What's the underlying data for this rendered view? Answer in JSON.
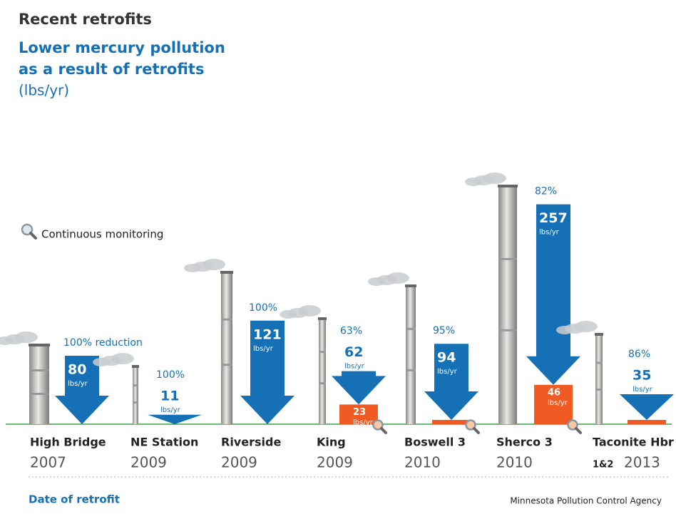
{
  "chart_data": {
    "type": "retrofit-arrows",
    "title": "Recent retrofits",
    "subtitle": [
      "Lower mercury pollution",
      "as a result of retrofits"
    ],
    "unit_label": "(lbs/yr)",
    "legend": "Continuous monitoring",
    "value_unit": "lbs/yr",
    "x_label": "Date of retrofit",
    "source": "Minnesota Pollution Control Agency",
    "categories": [
      "High Bridge",
      "NE Station",
      "Riverside",
      "King",
      "Boswell 3",
      "Sherco 3",
      "Taconite Hbr"
    ],
    "sublabels": [
      null,
      null,
      null,
      null,
      null,
      null,
      "1&2"
    ],
    "years": [
      "2007",
      "2009",
      "2009",
      "2009",
      "2010",
      "2010",
      "2013"
    ],
    "monitored": [
      false,
      false,
      false,
      true,
      true,
      true,
      false
    ],
    "series": [
      {
        "color": "#1570b5",
        "values": [
          80,
          11,
          121,
          62,
          94,
          257,
          35
        ],
        "reduction_labels": [
          "100% reduction",
          "100%",
          "100%",
          "63%",
          "95%",
          "82%",
          "86%"
        ]
      },
      {
        "color": "#f05a23",
        "values": [
          0,
          0,
          0,
          23,
          5,
          46,
          5
        ],
        "value_labels": [
          null,
          null,
          null,
          "23",
          null,
          "46",
          null
        ]
      }
    ]
  }
}
